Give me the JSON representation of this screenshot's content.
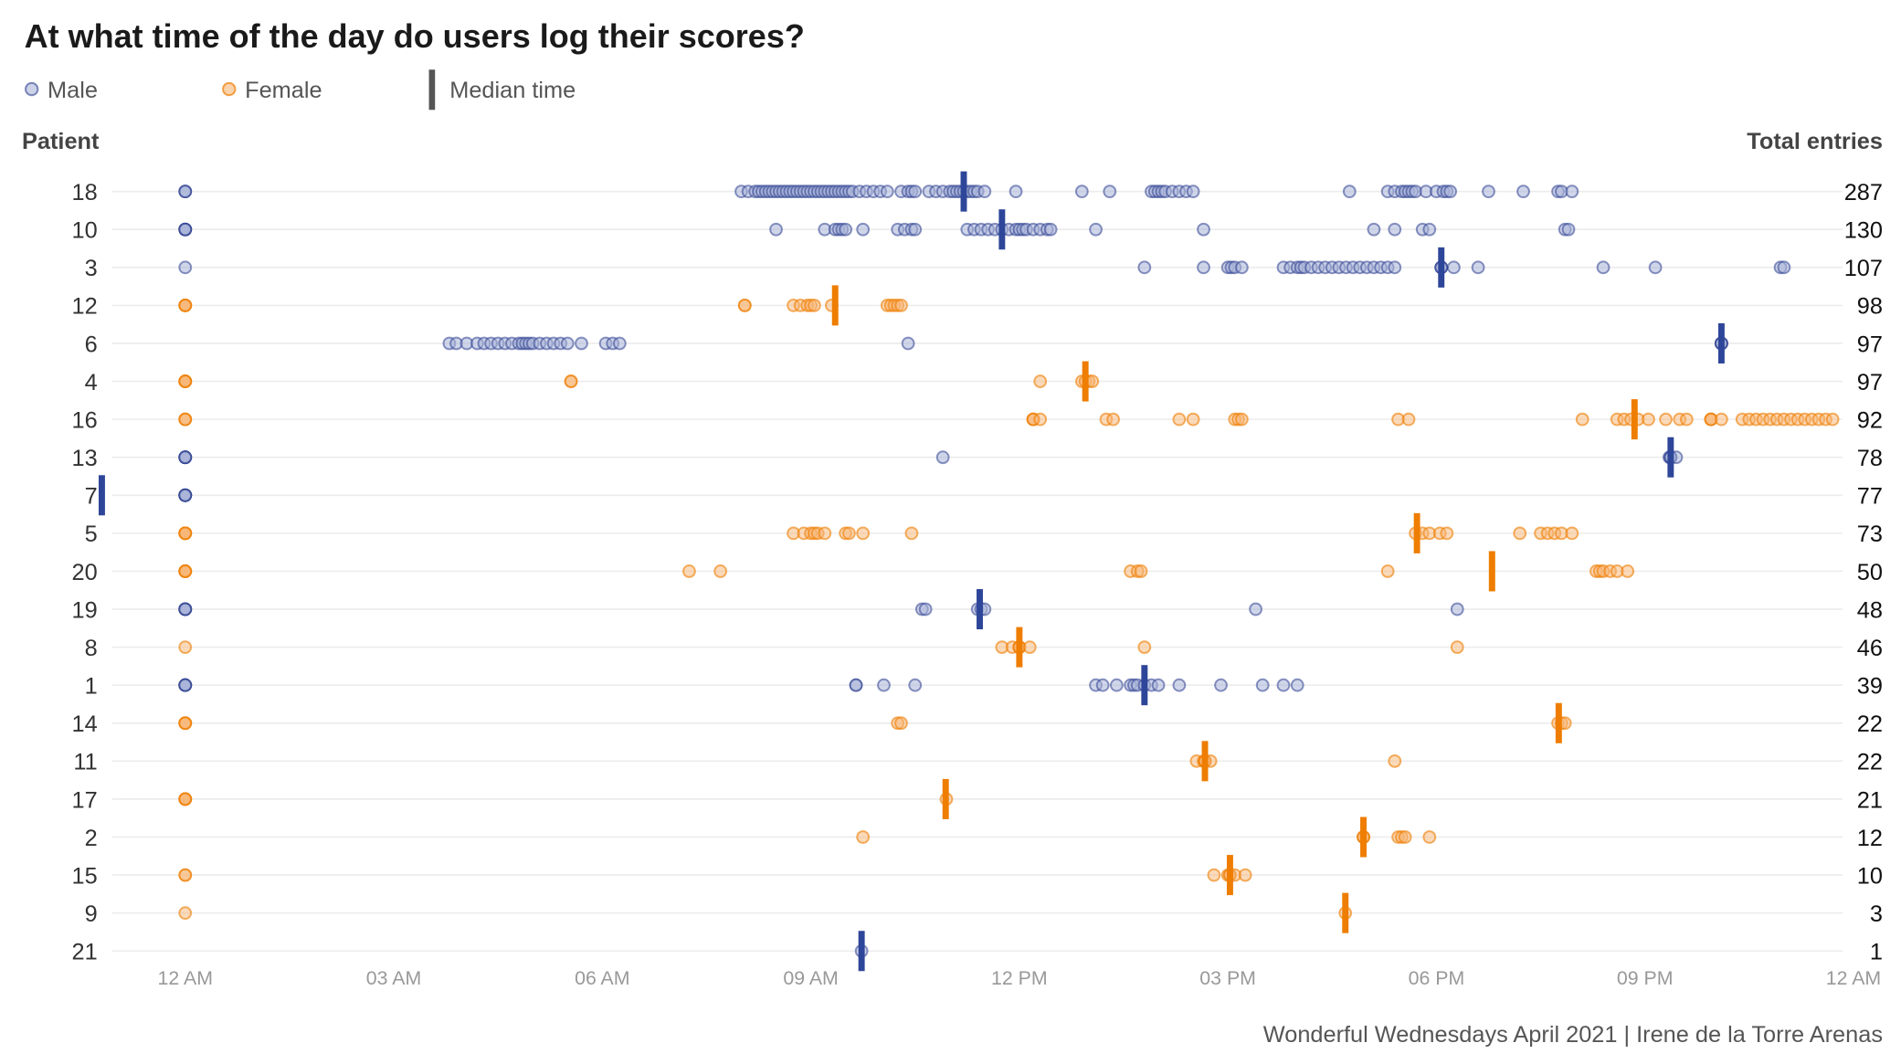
{
  "title": "At what time of the day do users log their scores?",
  "legend": {
    "male": "Male",
    "female": "Female",
    "median": "Median time"
  },
  "left_header": "Patient",
  "right_header": "Total entries",
  "footer": "Wonderful Wednesdays April 2021 | Irene de la Torre Arenas",
  "colors": {
    "male_fill": "#aab4d8",
    "male_stroke": "#2e3f8f",
    "male_median": "#2e4699",
    "female_fill": "#f7b675",
    "female_stroke": "#ee7d00",
    "female_median": "#ee7d00"
  },
  "chart_data": {
    "type": "scatter",
    "title": "At what time of the day do users log their scores?",
    "xlabel": "",
    "ylabel": "Patient",
    "x_unit": "hour of day",
    "xlim": [
      0,
      24
    ],
    "x_ticks": [
      {
        "value": 0,
        "label": "12 AM"
      },
      {
        "value": 3,
        "label": "03 AM"
      },
      {
        "value": 6,
        "label": "06 AM"
      },
      {
        "value": 9,
        "label": "09 AM"
      },
      {
        "value": 12,
        "label": "12 PM"
      },
      {
        "value": 15,
        "label": "03 PM"
      },
      {
        "value": 18,
        "label": "06 PM"
      },
      {
        "value": 21,
        "label": "09 PM"
      },
      {
        "value": 24,
        "label": "12 AM"
      }
    ],
    "grid": "horizontal",
    "legend_position": "top-left",
    "series": [
      {
        "patient": "18",
        "sex": "Male",
        "total": 287,
        "median": 11.2,
        "times": [
          0,
          0,
          0,
          8.0,
          8.1,
          8.2,
          8.25,
          8.3,
          8.35,
          8.4,
          8.45,
          8.5,
          8.55,
          8.6,
          8.65,
          8.7,
          8.75,
          8.8,
          8.85,
          8.9,
          8.95,
          9.0,
          9.05,
          9.1,
          9.15,
          9.2,
          9.25,
          9.3,
          9.35,
          9.4,
          9.45,
          9.5,
          9.55,
          9.6,
          9.7,
          9.8,
          9.9,
          10.0,
          10.1,
          10.3,
          10.4,
          10.45,
          10.5,
          10.7,
          10.8,
          10.9,
          11.0,
          11.05,
          11.1,
          11.15,
          11.2,
          11.25,
          11.3,
          11.35,
          11.4,
          11.5,
          11.95,
          12.9,
          13.3,
          13.9,
          13.95,
          14.0,
          14.05,
          14.1,
          14.2,
          14.3,
          14.4,
          14.5,
          16.75,
          17.3,
          17.4,
          17.5,
          17.55,
          17.6,
          17.65,
          17.7,
          17.85,
          18.0,
          18.1,
          18.15,
          18.2,
          18.75,
          19.25,
          19.75,
          19.8,
          19.95
        ]
      },
      {
        "patient": "10",
        "sex": "Male",
        "total": 130,
        "median": 11.75,
        "times": [
          0,
          0,
          0,
          0,
          0,
          0,
          8.5,
          9.2,
          9.35,
          9.4,
          9.45,
          9.5,
          9.75,
          10.25,
          10.35,
          10.45,
          10.5,
          11.25,
          11.35,
          11.45,
          11.55,
          11.65,
          11.75,
          11.85,
          11.95,
          12.0,
          12.05,
          12.1,
          12.2,
          12.3,
          12.4,
          12.45,
          13.1,
          14.65,
          17.1,
          17.4,
          17.8,
          17.9,
          19.85,
          19.9
        ]
      },
      {
        "patient": "3",
        "sex": "Male",
        "total": 107,
        "median": 18.07,
        "times": [
          0,
          13.8,
          14.65,
          15.0,
          15.05,
          15.1,
          15.2,
          15.8,
          15.9,
          16.0,
          16.05,
          16.1,
          16.2,
          16.3,
          16.4,
          16.5,
          16.6,
          16.7,
          16.8,
          16.9,
          17.0,
          17.1,
          17.2,
          17.3,
          17.4,
          18.07,
          18.07,
          18.07,
          18.07,
          18.25,
          18.6,
          20.4,
          21.15,
          22.95,
          23.0
        ]
      },
      {
        "patient": "12",
        "sex": "Female",
        "total": 98,
        "median": 9.35,
        "times": [
          0,
          0,
          0,
          0,
          8.05,
          8.05,
          8.75,
          8.85,
          8.95,
          9.0,
          9.05,
          9.3,
          10.1,
          10.15,
          10.2,
          10.25,
          10.3
        ]
      },
      {
        "patient": "6",
        "sex": "Male",
        "total": 97,
        "median": 22.1,
        "times": [
          3.8,
          3.9,
          4.05,
          4.2,
          4.3,
          4.4,
          4.5,
          4.6,
          4.7,
          4.8,
          4.85,
          4.9,
          4.95,
          5.0,
          5.1,
          5.2,
          5.3,
          5.4,
          5.5,
          5.7,
          6.05,
          6.15,
          6.25,
          10.4,
          22.1,
          22.1,
          22.1,
          22.1,
          22.1
        ]
      },
      {
        "patient": "4",
        "sex": "Female",
        "total": 97,
        "median": 12.95,
        "times": [
          0,
          0,
          0,
          0,
          0,
          5.55,
          5.55,
          12.3,
          12.9,
          12.95,
          13.0,
          13.05
        ]
      },
      {
        "patient": "16",
        "sex": "Female",
        "total": 92,
        "median": 20.85,
        "times": [
          0,
          0,
          0,
          12.2,
          12.2,
          12.2,
          12.3,
          13.25,
          13.35,
          14.3,
          14.5,
          15.1,
          15.15,
          15.2,
          17.45,
          17.6,
          20.1,
          20.6,
          20.7,
          20.8,
          20.9,
          21.05,
          21.3,
          21.5,
          21.6,
          21.95,
          21.95,
          21.95,
          22.1,
          22.4,
          22.5,
          22.6,
          22.7,
          22.8,
          22.9,
          23.0,
          23.1,
          23.2,
          23.3,
          23.4,
          23.5,
          23.6,
          23.7
        ]
      },
      {
        "patient": "13",
        "sex": "Male",
        "total": 78,
        "median": 21.37,
        "times": [
          0,
          0,
          0,
          0,
          0,
          0,
          10.9,
          21.35,
          21.37,
          21.37,
          21.37,
          21.45
        ]
      },
      {
        "patient": "7",
        "sex": "Male",
        "total": 77,
        "median": -1.2,
        "times": [
          0,
          0,
          0,
          0,
          0,
          0,
          0,
          0
        ]
      },
      {
        "patient": "5",
        "sex": "Female",
        "total": 73,
        "median": 17.72,
        "times": [
          0,
          0,
          0,
          0,
          0,
          8.75,
          8.9,
          9.0,
          9.05,
          9.1,
          9.2,
          9.5,
          9.55,
          9.75,
          10.45,
          17.7,
          17.8,
          17.9,
          18.05,
          18.15,
          19.2,
          19.5,
          19.6,
          19.7,
          19.8,
          19.95
        ]
      },
      {
        "patient": "20",
        "sex": "Female",
        "total": 50,
        "median": 18.8,
        "times": [
          0,
          0,
          0,
          0,
          0,
          7.25,
          7.7,
          13.6,
          13.7,
          13.75,
          17.3,
          20.3,
          20.35,
          20.4,
          20.5,
          20.6,
          20.75
        ]
      },
      {
        "patient": "19",
        "sex": "Male",
        "total": 48,
        "median": 11.43,
        "times": [
          0,
          0,
          0,
          0,
          0,
          0,
          10.6,
          10.65,
          11.4,
          11.45,
          11.5,
          15.4,
          18.3
        ]
      },
      {
        "patient": "8",
        "sex": "Female",
        "total": 46,
        "median": 12.0,
        "times": [
          0,
          11.75,
          11.9,
          12.0,
          12.0,
          12.0,
          12.0,
          12.15,
          13.8,
          18.3
        ]
      },
      {
        "patient": "1",
        "sex": "Male",
        "total": 39,
        "median": 13.8,
        "times": [
          0,
          0,
          0,
          0,
          0,
          0,
          9.65,
          9.65,
          10.05,
          10.5,
          13.1,
          13.2,
          13.4,
          13.6,
          13.65,
          13.7,
          13.8,
          13.9,
          14.0,
          14.3,
          14.9,
          15.5,
          15.8,
          16.0
        ]
      },
      {
        "patient": "14",
        "sex": "Female",
        "total": 22,
        "median": 19.76,
        "times": [
          0,
          0,
          0,
          0,
          10.25,
          10.3,
          19.75,
          19.8,
          19.85
        ]
      },
      {
        "patient": "11",
        "sex": "Female",
        "total": 22,
        "median": 14.67,
        "times": [
          14.55,
          14.65,
          14.67,
          14.67,
          14.67,
          14.75,
          17.4
        ]
      },
      {
        "patient": "17",
        "sex": "Female",
        "total": 21,
        "median": 10.94,
        "times": [
          0,
          0,
          0,
          0,
          0,
          10.95
        ]
      },
      {
        "patient": "2",
        "sex": "Female",
        "total": 12,
        "median": 16.95,
        "times": [
          9.75,
          16.95,
          16.95,
          16.95,
          17.45,
          17.5,
          17.55,
          17.9
        ]
      },
      {
        "patient": "15",
        "sex": "Female",
        "total": 10,
        "median": 15.03,
        "times": [
          0,
          0,
          14.8,
          15.0,
          15.03,
          15.03,
          15.1,
          15.25
        ]
      },
      {
        "patient": "9",
        "sex": "Female",
        "total": 3,
        "median": 16.69,
        "times": [
          0,
          16.69
        ]
      },
      {
        "patient": "21",
        "sex": "Male",
        "total": 1,
        "median": 9.73,
        "times": [
          9.73
        ]
      }
    ]
  }
}
